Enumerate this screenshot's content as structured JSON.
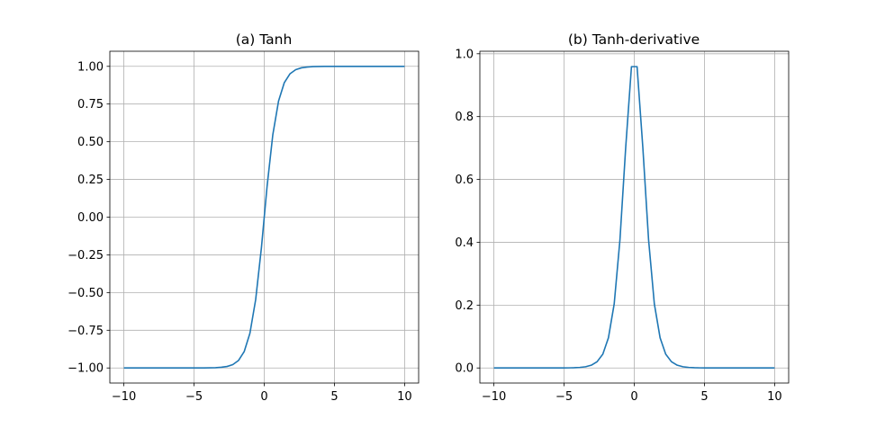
{
  "figure": {
    "line_color": "#1f77b4",
    "grid_color": "#b0b0b0",
    "axes_color": "#000000",
    "background": "#ffffff"
  },
  "chart_data": [
    {
      "type": "line",
      "title": "(a) Tanh",
      "xlabel": "",
      "ylabel": "",
      "grid": true,
      "xlim": [
        -11,
        11
      ],
      "ylim": [
        -1.1,
        1.1
      ],
      "xticks": [
        -10,
        -5,
        0,
        5,
        10
      ],
      "xtick_labels": [
        "−10",
        "−5",
        "0",
        "5",
        "10"
      ],
      "yticks": [
        -1.0,
        -0.75,
        -0.5,
        -0.25,
        0.0,
        0.25,
        0.5,
        0.75,
        1.0
      ],
      "ytick_labels": [
        "−1.00",
        "−0.75",
        "−0.50",
        "−0.25",
        "0.00",
        "0.25",
        "0.50",
        "0.75",
        "1.00"
      ],
      "series": [
        {
          "x": [
            -10,
            -9.59,
            -9.18,
            -8.78,
            -8.37,
            -7.96,
            -7.55,
            -7.14,
            -6.73,
            -6.33,
            -5.92,
            -5.51,
            -5.1,
            -4.69,
            -4.29,
            -3.88,
            -3.47,
            -3.06,
            -2.65,
            -2.24,
            -1.84,
            -1.43,
            -1.02,
            -0.61,
            -0.2,
            0.2,
            0.61,
            1.02,
            1.43,
            1.84,
            2.24,
            2.65,
            3.06,
            3.47,
            3.88,
            4.29,
            4.69,
            5.1,
            5.51,
            5.92,
            6.33,
            6.73,
            7.14,
            7.55,
            7.96,
            8.37,
            8.78,
            9.18,
            9.59,
            10
          ],
          "y": [
            -1.0,
            -1.0,
            -1.0,
            -1.0,
            -1.0,
            -1.0,
            -1.0,
            -1.0,
            -1.0,
            -1.0,
            -1.0,
            -1.0,
            -1.0,
            -0.9998,
            -0.9996,
            -0.9991,
            -0.998,
            -0.9955,
            -0.99,
            -0.978,
            -0.951,
            -0.892,
            -0.77,
            -0.546,
            -0.202,
            0.202,
            0.546,
            0.77,
            0.892,
            0.951,
            0.978,
            0.99,
            0.9955,
            0.998,
            0.9991,
            0.9996,
            0.9998,
            1.0,
            1.0,
            1.0,
            1.0,
            1.0,
            1.0,
            1.0,
            1.0,
            1.0,
            1.0,
            1.0,
            1.0,
            1.0
          ]
        }
      ]
    },
    {
      "type": "line",
      "title": "(b) Tanh-derivative",
      "xlabel": "",
      "ylabel": "",
      "grid": true,
      "xlim": [
        -11,
        11
      ],
      "ylim": [
        -0.048,
        1.008
      ],
      "xticks": [
        -10,
        -5,
        0,
        5,
        10
      ],
      "xtick_labels": [
        "−10",
        "−5",
        "0",
        "5",
        "10"
      ],
      "yticks": [
        0.0,
        0.2,
        0.4,
        0.6,
        0.8,
        1.0
      ],
      "ytick_labels": [
        "0.0",
        "0.2",
        "0.4",
        "0.6",
        "0.8",
        "1.0"
      ],
      "series": [
        {
          "x": [
            -10,
            -9.59,
            -9.18,
            -8.78,
            -8.37,
            -7.96,
            -7.55,
            -7.14,
            -6.73,
            -6.33,
            -5.92,
            -5.51,
            -5.1,
            -4.69,
            -4.29,
            -3.88,
            -3.47,
            -3.06,
            -2.65,
            -2.24,
            -1.84,
            -1.43,
            -1.02,
            -0.61,
            -0.2,
            0.2,
            0.61,
            1.02,
            1.43,
            1.84,
            2.24,
            2.65,
            3.06,
            3.47,
            3.88,
            4.29,
            4.69,
            5.1,
            5.51,
            5.92,
            6.33,
            6.73,
            7.14,
            7.55,
            7.96,
            8.37,
            8.78,
            9.18,
            9.59,
            10
          ],
          "y": [
            0.0,
            0.0,
            0.0,
            0.0,
            0.0,
            0.0,
            0.0,
            0.0,
            0.0,
            0.0,
            0.0,
            0.0,
            0.0001,
            0.0003,
            0.0008,
            0.0017,
            0.0039,
            0.0088,
            0.0198,
            0.044,
            0.096,
            0.204,
            0.408,
            0.702,
            0.959,
            0.959,
            0.702,
            0.408,
            0.204,
            0.096,
            0.044,
            0.0198,
            0.0088,
            0.0039,
            0.0017,
            0.0008,
            0.0003,
            0.0001,
            0.0,
            0.0,
            0.0,
            0.0,
            0.0,
            0.0,
            0.0,
            0.0,
            0.0,
            0.0,
            0.0,
            0.0
          ]
        }
      ]
    }
  ]
}
